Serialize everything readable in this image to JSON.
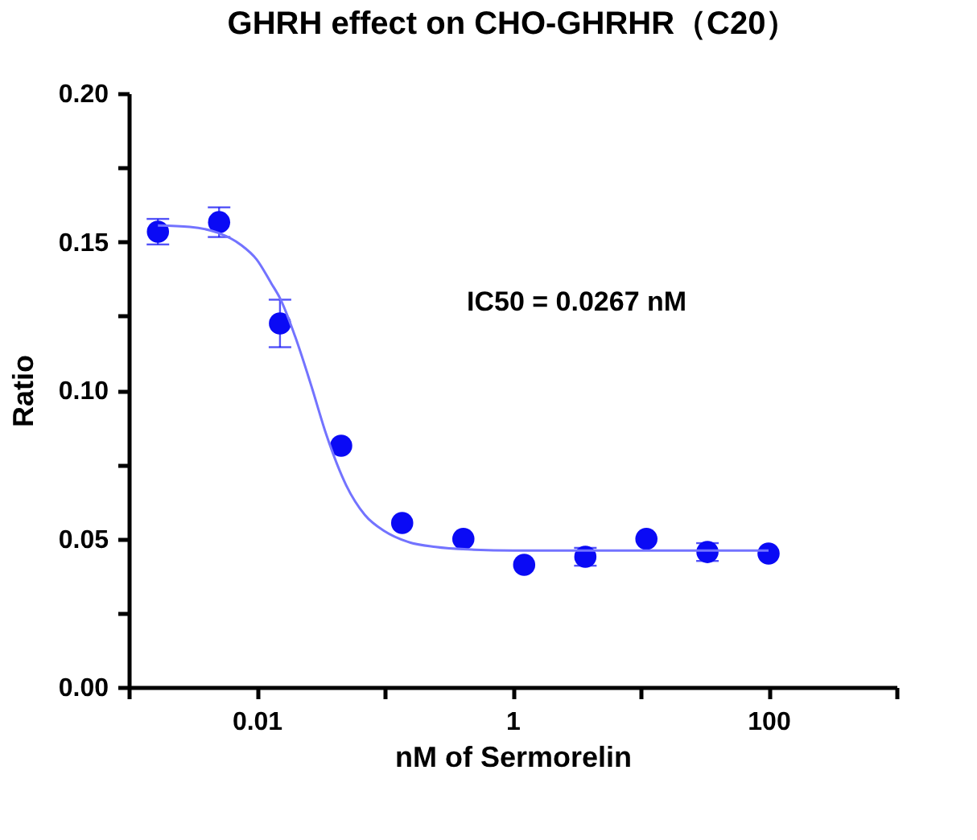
{
  "chart_data": {
    "type": "scatter",
    "title": "GHRH effect on CHO-GHRHR（C20）",
    "xlabel": "nM of Sermorelin",
    "ylabel": "Ratio",
    "log": "x",
    "xlim": [
      0.001,
      1000
    ],
    "ylim": [
      0,
      0.2
    ],
    "xticks": [
      {
        "value": 0.001,
        "label": null
      },
      {
        "value": 0.01,
        "label": "0.01"
      },
      {
        "value": 0.1,
        "label": null
      },
      {
        "value": 1,
        "label": "1"
      },
      {
        "value": 10,
        "label": null
      },
      {
        "value": 100,
        "label": "100"
      },
      {
        "value": 1000,
        "label": null
      }
    ],
    "yticks": [
      {
        "value": 0,
        "label": "0.00"
      },
      {
        "value": 0.025,
        "label": null
      },
      {
        "value": 0.05,
        "label": "0.05"
      },
      {
        "value": 0.075,
        "label": null
      },
      {
        "value": 0.1,
        "label": "0.10"
      },
      {
        "value": 0.125,
        "label": null
      },
      {
        "value": 0.15,
        "label": "0.15"
      },
      {
        "value": 0.175,
        "label": null
      },
      {
        "value": 0.2,
        "label": "0.20"
      }
    ],
    "grid": false,
    "marker": "circle",
    "annotations": [
      "IC50 = 0.0267 nM"
    ],
    "series": [
      {
        "color": "#0a0af5",
        "x": [
          0.00169,
          0.00508,
          0.0152,
          0.0457,
          0.137,
          0.412,
          1.23,
          3.7,
          11.1,
          33.3,
          100
        ],
        "values": [
          0.1534,
          0.1566,
          0.1225,
          0.0813,
          0.0553,
          0.0499,
          0.0412,
          0.0439,
          0.0499,
          0.0455,
          0.045
        ],
        "errors": [
          0.0043,
          0.005,
          0.008,
          null,
          null,
          null,
          null,
          0.003,
          null,
          0.003,
          null
        ]
      },
      {
        "type": "line",
        "color": "#7373ff",
        "line_style": "solid",
        "marker": "none",
        "x": [
          0.00169,
          0.003,
          0.005,
          0.0075,
          0.01,
          0.013,
          0.0152,
          0.02,
          0.0267,
          0.035,
          0.05,
          0.07,
          0.1,
          0.15,
          0.25,
          0.5,
          1,
          10,
          100
        ],
        "values": [
          0.1555,
          0.155,
          0.153,
          0.149,
          0.144,
          0.136,
          0.131,
          0.118,
          0.1015,
          0.085,
          0.068,
          0.058,
          0.0525,
          0.049,
          0.0472,
          0.0463,
          0.046,
          0.046,
          0.046
        ]
      }
    ]
  }
}
